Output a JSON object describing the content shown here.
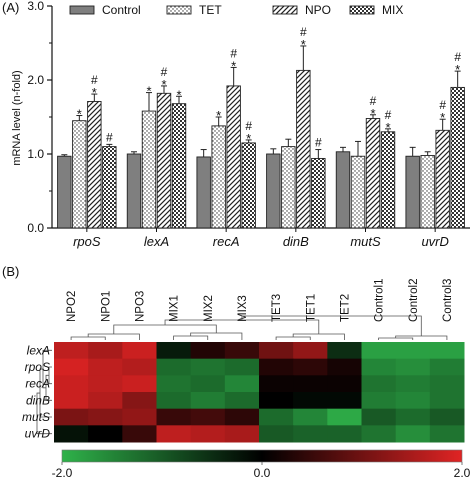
{
  "panel_a": {
    "label": "(A)",
    "chart_data": {
      "type": "bar",
      "categories": [
        "rpoS",
        "lexA",
        "recA",
        "dinB",
        "mutS",
        "uvrD"
      ],
      "ylabel": "mRNA level (n-fold)",
      "ylim": [
        0,
        3.0
      ],
      "yticks": [
        "0.0",
        "1.0",
        "2.0",
        "3.0"
      ],
      "legend_position": "top",
      "series": [
        {
          "name": "Control",
          "pattern": "solid-gray",
          "values": [
            0.97,
            1.0,
            0.96,
            1.0,
            1.03,
            0.97
          ],
          "errors": [
            0.02,
            0.03,
            0.1,
            0.07,
            0.06,
            0.12
          ],
          "marks": [
            "",
            "",
            "",
            "",
            "",
            ""
          ]
        },
        {
          "name": "TET",
          "pattern": "dots",
          "values": [
            1.45,
            1.58,
            1.38,
            1.1,
            0.97,
            0.98
          ],
          "errors": [
            0.07,
            0.25,
            0.12,
            0.1,
            0.2,
            0.05
          ],
          "marks": [
            "*",
            "*",
            "*",
            "",
            "",
            ""
          ]
        },
        {
          "name": "NPO",
          "pattern": "diagonal",
          "values": [
            1.71,
            1.82,
            1.92,
            2.13,
            1.48,
            1.32
          ],
          "errors": [
            0.1,
            0.1,
            0.25,
            0.33,
            0.05,
            0.15
          ],
          "marks": [
            "#*",
            "#*",
            "#*",
            "#*",
            "#*",
            "#*"
          ]
        },
        {
          "name": "MIX",
          "pattern": "checker",
          "values": [
            1.1,
            1.68,
            1.15,
            0.94,
            1.3,
            1.9
          ],
          "errors": [
            0.03,
            0.1,
            0.04,
            0.12,
            0.04,
            0.22
          ],
          "marks": [
            "#",
            "*",
            "#*",
            "#",
            "#*",
            "#*"
          ]
        }
      ]
    }
  },
  "panel_b": {
    "label": "(B)",
    "chart_data": {
      "type": "heatmap",
      "columns": [
        "NPO2",
        "NPO1",
        "NPO3",
        "MIX1",
        "MIX2",
        "MIX3",
        "TET3",
        "TET1",
        "TET2",
        "Control1",
        "Control2",
        "Control3"
      ],
      "rows": [
        "lexA",
        "rpoS",
        "recA",
        "dinB",
        "mutS",
        "uvrD"
      ],
      "values": [
        [
          1.7,
          1.5,
          1.8,
          -0.3,
          0.3,
          0.5,
          1.0,
          1.3,
          -0.5,
          -1.8,
          -1.8,
          -1.8
        ],
        [
          1.9,
          1.7,
          1.6,
          -1.2,
          -1.3,
          -1.2,
          0.3,
          0.4,
          0.2,
          -1.5,
          -1.6,
          -1.4
        ],
        [
          1.8,
          1.7,
          1.8,
          -1.3,
          -1.2,
          -1.5,
          0.1,
          0.1,
          0.1,
          -1.3,
          -1.4,
          -1.3
        ],
        [
          1.8,
          1.6,
          1.2,
          -1.2,
          -1.4,
          -1.2,
          0.0,
          -0.1,
          -0.1,
          -1.4,
          -1.5,
          -1.3
        ],
        [
          1.1,
          1.2,
          1.3,
          0.5,
          0.6,
          0.4,
          -1.2,
          -1.5,
          -1.9,
          -1.0,
          -1.2,
          -1.0
        ],
        [
          -0.2,
          0.0,
          0.5,
          1.7,
          1.6,
          1.5,
          -1.0,
          -1.1,
          -1.1,
          -1.3,
          -1.6,
          -1.3
        ]
      ],
      "colorbar": {
        "min": -2.0,
        "mid": 0.0,
        "max": 2.0,
        "labels": [
          "-2.0",
          "0.0",
          "2.0"
        ],
        "low_color": "#2fb24a",
        "mid_color": "#000000",
        "high_color": "#e02424"
      }
    }
  }
}
